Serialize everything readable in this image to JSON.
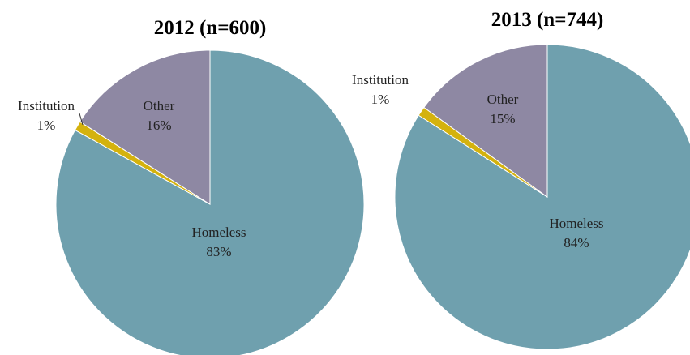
{
  "chart_data": [
    {
      "type": "pie",
      "title": "2012 (n=600)",
      "slices": [
        {
          "name": "Homeless",
          "value": 83,
          "label": "83%",
          "color": "#6fa0ae"
        },
        {
          "name": "Institution",
          "value": 1,
          "label": "1%",
          "color": "#d4b20e"
        },
        {
          "name": "Other",
          "value": 16,
          "label": "16%",
          "color": "#8e88a3"
        }
      ]
    },
    {
      "type": "pie",
      "title": "2013 (n=744)",
      "slices": [
        {
          "name": "Homeless",
          "value": 84,
          "label": "84%",
          "color": "#6fa0ae"
        },
        {
          "name": "Institution",
          "value": 1,
          "label": "1%",
          "color": "#d4b20e"
        },
        {
          "name": "Other",
          "value": 15,
          "label": "15%",
          "color": "#8e88a3"
        }
      ]
    }
  ]
}
